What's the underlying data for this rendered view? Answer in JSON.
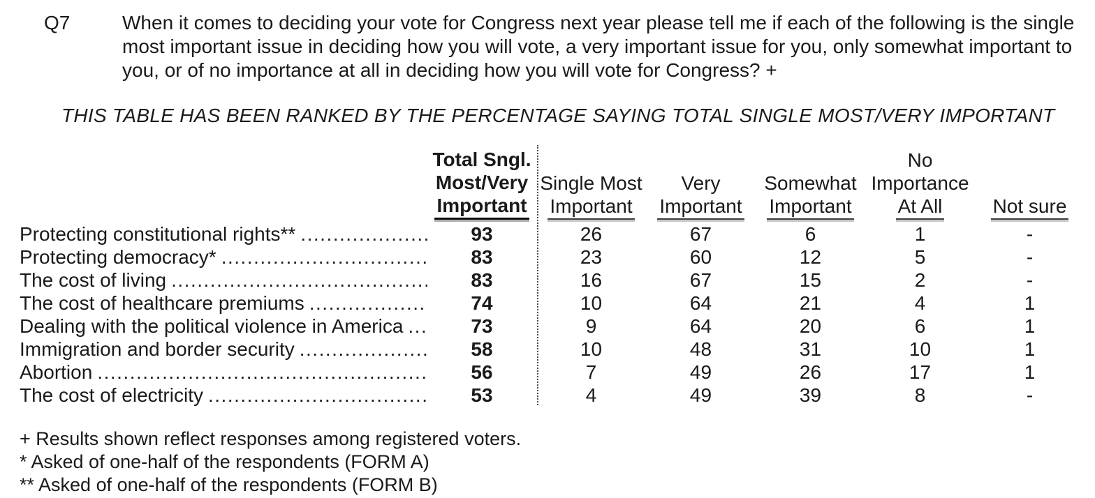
{
  "question": {
    "number": "Q7",
    "text": "When it comes to deciding your vote for Congress next year please tell me if each of the following is the single most important issue in deciding how you will vote, a very important issue for you, only somewhat important to you, or of no importance at all in deciding how you will vote for Congress? +"
  },
  "rank_note": "THIS TABLE HAS BEEN RANKED BY THE PERCENTAGE SAYING TOTAL SINGLE MOST/VERY IMPORTANT",
  "table": {
    "columns": [
      {
        "lines": [
          "Total Sngl.",
          "Most/Very",
          "Important"
        ]
      },
      {
        "lines": [
          "Single Most",
          "Important"
        ]
      },
      {
        "lines": [
          "Very",
          "Important"
        ]
      },
      {
        "lines": [
          "Somewhat",
          "Important"
        ]
      },
      {
        "lines": [
          "No",
          "Importance",
          "At All"
        ]
      },
      {
        "lines": [
          "Not sure"
        ]
      }
    ],
    "rows": [
      {
        "label": "Protecting constitutional rights**",
        "values": [
          "93",
          "26",
          "67",
          "6",
          "1",
          "-"
        ]
      },
      {
        "label": "Protecting democracy*",
        "values": [
          "83",
          "23",
          "60",
          "12",
          "5",
          "-"
        ]
      },
      {
        "label": "The cost of living",
        "values": [
          "83",
          "16",
          "67",
          "15",
          "2",
          "-"
        ]
      },
      {
        "label": "The cost of healthcare premiums",
        "values": [
          "74",
          "10",
          "64",
          "21",
          "4",
          "1"
        ]
      },
      {
        "label": "Dealing with the political violence in America",
        "values": [
          "73",
          "9",
          "64",
          "20",
          "6",
          "1"
        ]
      },
      {
        "label": "Immigration and border security",
        "values": [
          "58",
          "10",
          "48",
          "31",
          "10",
          "1"
        ]
      },
      {
        "label": "Abortion",
        "values": [
          "56",
          "7",
          "49",
          "26",
          "17",
          "1"
        ]
      },
      {
        "label": "The cost of electricity",
        "values": [
          "53",
          "4",
          "49",
          "39",
          "8",
          "-"
        ]
      }
    ]
  },
  "footnotes": [
    "+ Results shown reflect responses among registered voters.",
    "* Asked of one-half of the respondents (FORM A)",
    "** Asked of one-half of the respondents (FORM B)"
  ]
}
